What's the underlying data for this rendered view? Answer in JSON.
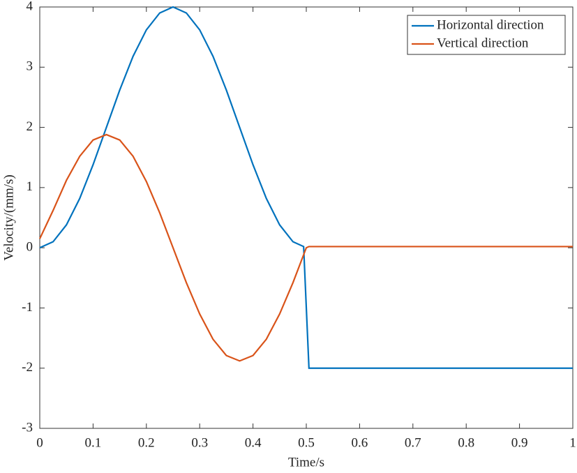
{
  "chart_data": {
    "type": "line",
    "xlabel": "Time/s",
    "ylabel": "Velocity/(mm/s)",
    "xlim": [
      0,
      1
    ],
    "xticks": [
      0,
      0.1,
      0.2,
      0.3,
      0.4,
      0.5,
      0.6,
      0.7,
      0.8,
      0.9,
      1
    ],
    "ylim": [
      -3,
      4
    ],
    "yticks": [
      -3,
      -2,
      -1,
      0,
      1,
      2,
      3,
      4
    ],
    "legend": "upper right",
    "series": [
      {
        "name": "Horizontal direction",
        "color": "#0072bd",
        "x": [
          0,
          0.025,
          0.05,
          0.075,
          0.1,
          0.125,
          0.15,
          0.175,
          0.2,
          0.225,
          0.25,
          0.275,
          0.3,
          0.325,
          0.35,
          0.375,
          0.4,
          0.425,
          0.45,
          0.475,
          0.495,
          0.505,
          1
        ],
        "values": [
          0,
          0.1,
          0.38,
          0.82,
          1.38,
          2,
          2.62,
          3.18,
          3.62,
          3.9,
          4,
          3.9,
          3.62,
          3.18,
          2.62,
          2,
          1.38,
          0.82,
          0.38,
          0.1,
          0.02,
          -2,
          -2
        ]
      },
      {
        "name": "Vertical direction",
        "color": "#d95319",
        "x": [
          0,
          0.025,
          0.05,
          0.075,
          0.1,
          0.125,
          0.15,
          0.175,
          0.2,
          0.225,
          0.25,
          0.275,
          0.3,
          0.325,
          0.35,
          0.375,
          0.4,
          0.425,
          0.45,
          0.475,
          0.5,
          0.505,
          1
        ],
        "values": [
          0.15,
          0.62,
          1.12,
          1.52,
          1.79,
          1.88,
          1.79,
          1.52,
          1.1,
          0.58,
          0,
          -0.58,
          -1.1,
          -1.52,
          -1.79,
          -1.88,
          -1.79,
          -1.52,
          -1.1,
          -0.58,
          0,
          0.02,
          0.02
        ]
      }
    ]
  }
}
